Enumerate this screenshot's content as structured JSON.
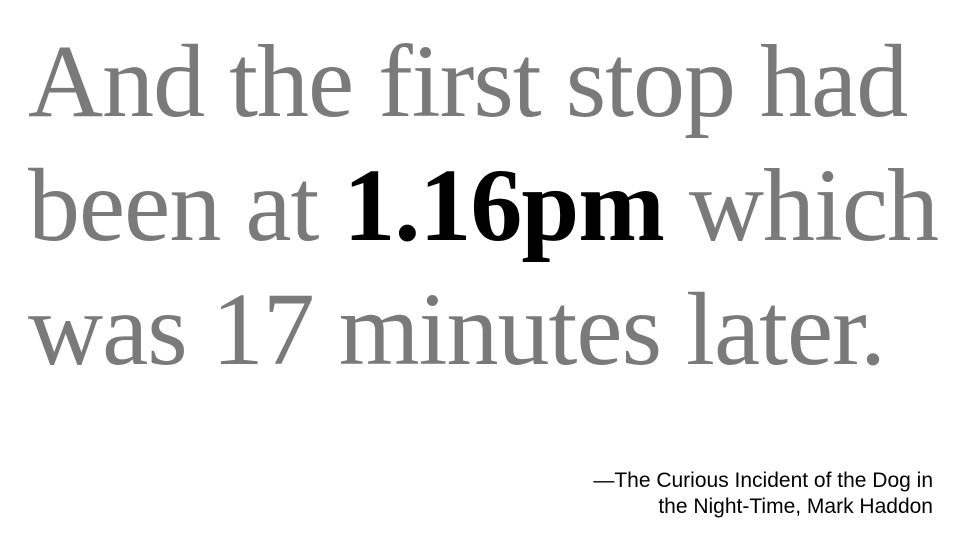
{
  "quote": {
    "before": "And the first stop had been at ",
    "highlight": "1.16pm",
    "after": " which was 17 minutes later."
  },
  "attribution": {
    "line1": "—The Curious Incident of the Dog in",
    "line2": "the Night-Time, Mark Haddon"
  },
  "colors": {
    "quote_text": "#7a7a7a",
    "highlight": "#000000",
    "attribution": "#000000",
    "background": "#ffffff"
  }
}
